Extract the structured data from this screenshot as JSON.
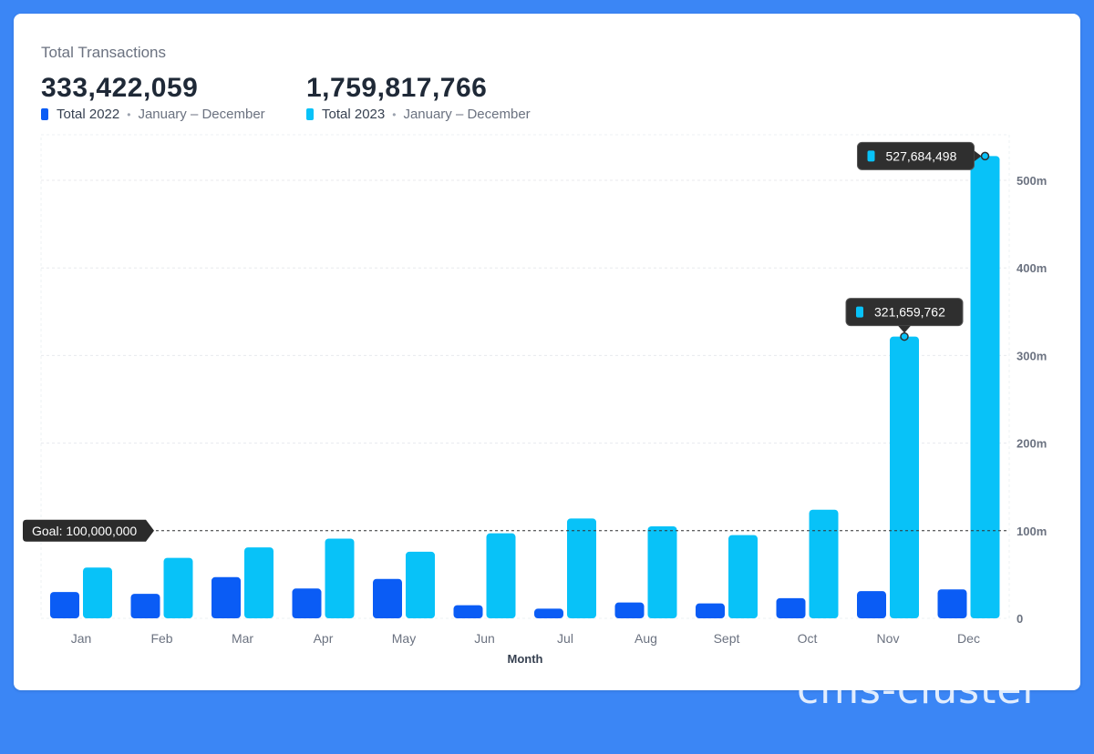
{
  "card": {
    "title": "Total Transactions",
    "totals": [
      {
        "value": "333,422,059",
        "label": "Total 2022",
        "range": "January – December",
        "color": "#0a5cf5"
      },
      {
        "value": "1,759,817,766",
        "label": "Total 2023",
        "range": "January – December",
        "color": "#08c2f8"
      }
    ]
  },
  "chart_data": {
    "type": "bar",
    "xlabel": "Month",
    "ylabel": "",
    "ylim": [
      0,
      550000000
    ],
    "y_ticks": [
      0,
      100000000,
      200000000,
      300000000,
      400000000,
      500000000
    ],
    "y_tick_labels": [
      "0",
      "100m",
      "200m",
      "300m",
      "400m",
      "500m"
    ],
    "categories": [
      "Jan",
      "Feb",
      "Mar",
      "Apr",
      "May",
      "Jun",
      "Jul",
      "Aug",
      "Sept",
      "Oct",
      "Nov",
      "Dec"
    ],
    "series": [
      {
        "name": "Total 2022",
        "color": "#0a5cf5",
        "values": [
          30000000,
          28000000,
          47000000,
          34000000,
          45000000,
          15000000,
          11000000,
          18000000,
          17000000,
          23000000,
          31000000,
          33000000
        ]
      },
      {
        "name": "Total 2023",
        "color": "#08c2f8",
        "values": [
          58000000,
          69000000,
          81000000,
          91000000,
          76000000,
          97000000,
          114000000,
          105000000,
          95000000,
          124000000,
          321659762,
          527684498
        ]
      }
    ],
    "goal": {
      "value": 100000000,
      "label": "Goal: 100,000,000"
    },
    "tooltips": [
      {
        "category": "Nov",
        "series": 1,
        "label": "321,659,762"
      },
      {
        "category": "Dec",
        "series": 1,
        "label": "527,684,498"
      }
    ],
    "grid": true
  },
  "watermark": "cms-cluster"
}
